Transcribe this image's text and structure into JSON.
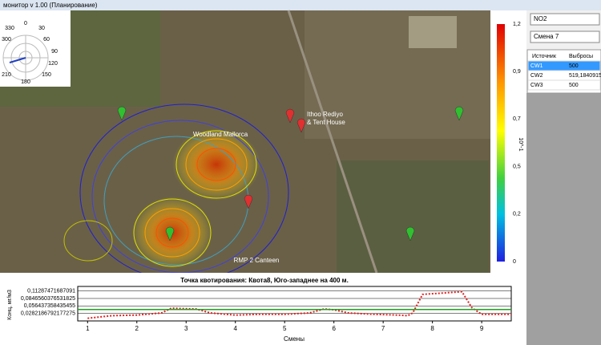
{
  "window": {
    "title": "монитор v 1.00 (Планирование)"
  },
  "map": {
    "labels": [
      "Ithoo Rediyo",
      "& Tent House",
      "Woodland Mallorca",
      "RMP 2 Canteen"
    ],
    "polar_labels": [
      "330",
      "0",
      "30",
      "300",
      "60",
      "90",
      "120",
      "210",
      "150",
      "180"
    ],
    "colorbar": {
      "labels": [
        "1,2",
        "0,9",
        "0,7",
        "0,5",
        "0,2",
        "0"
      ],
      "unit": "10^-1"
    }
  },
  "panel": {
    "substance": "NO2",
    "shift": "Смена 7",
    "table": {
      "headers": [
        "Источник",
        "Выбросы"
      ],
      "rows": [
        [
          "CW1",
          "500"
        ],
        [
          "CW2",
          "519,1840915"
        ],
        [
          "CW3",
          "500"
        ]
      ]
    }
  },
  "chart": {
    "type": "line",
    "title": "Точка квотирования: Квота8, Юго-западнее на 400 м.",
    "x_label": "Смены",
    "y_label": "Конц, мг/м3",
    "xlim": [
      0.8,
      9.6
    ],
    "ylim": [
      0,
      0.13
    ],
    "xticks": [
      1,
      2,
      3,
      4,
      5,
      6,
      7,
      8,
      9
    ],
    "yticks": [
      {
        "value": 0.0282186792177275,
        "label": "0,0282186792177275"
      },
      {
        "value": 0.056437358435455,
        "label": "0,056437358435455"
      },
      {
        "value": 0.0846560376531825,
        "label": "0,0846560376531825"
      },
      {
        "value": 0.11287471687091,
        "label": "0,11287471687091"
      }
    ],
    "grid": true,
    "series": [
      {
        "color": "#e02020",
        "x": [
          1,
          1.5,
          2,
          2.5,
          2.7,
          3.2,
          3.5,
          4,
          4.5,
          5,
          5.5,
          5.8,
          6,
          6.3,
          6.8,
          7.3,
          7.5,
          7.6,
          7.8,
          8.2,
          8.6,
          8.8,
          9,
          9.6
        ],
        "values": [
          0.01,
          0.02,
          0.022,
          0.03,
          0.048,
          0.045,
          0.03,
          0.022,
          0.025,
          0.025,
          0.03,
          0.045,
          0.042,
          0.03,
          0.025,
          0.022,
          0.02,
          0.03,
          0.1,
          0.105,
          0.11,
          0.05,
          0.025,
          0.025
        ]
      },
      {
        "color": "#20a020",
        "x": [
          0.8,
          9.6
        ],
        "values": [
          0.043,
          0.043
        ]
      }
    ]
  }
}
